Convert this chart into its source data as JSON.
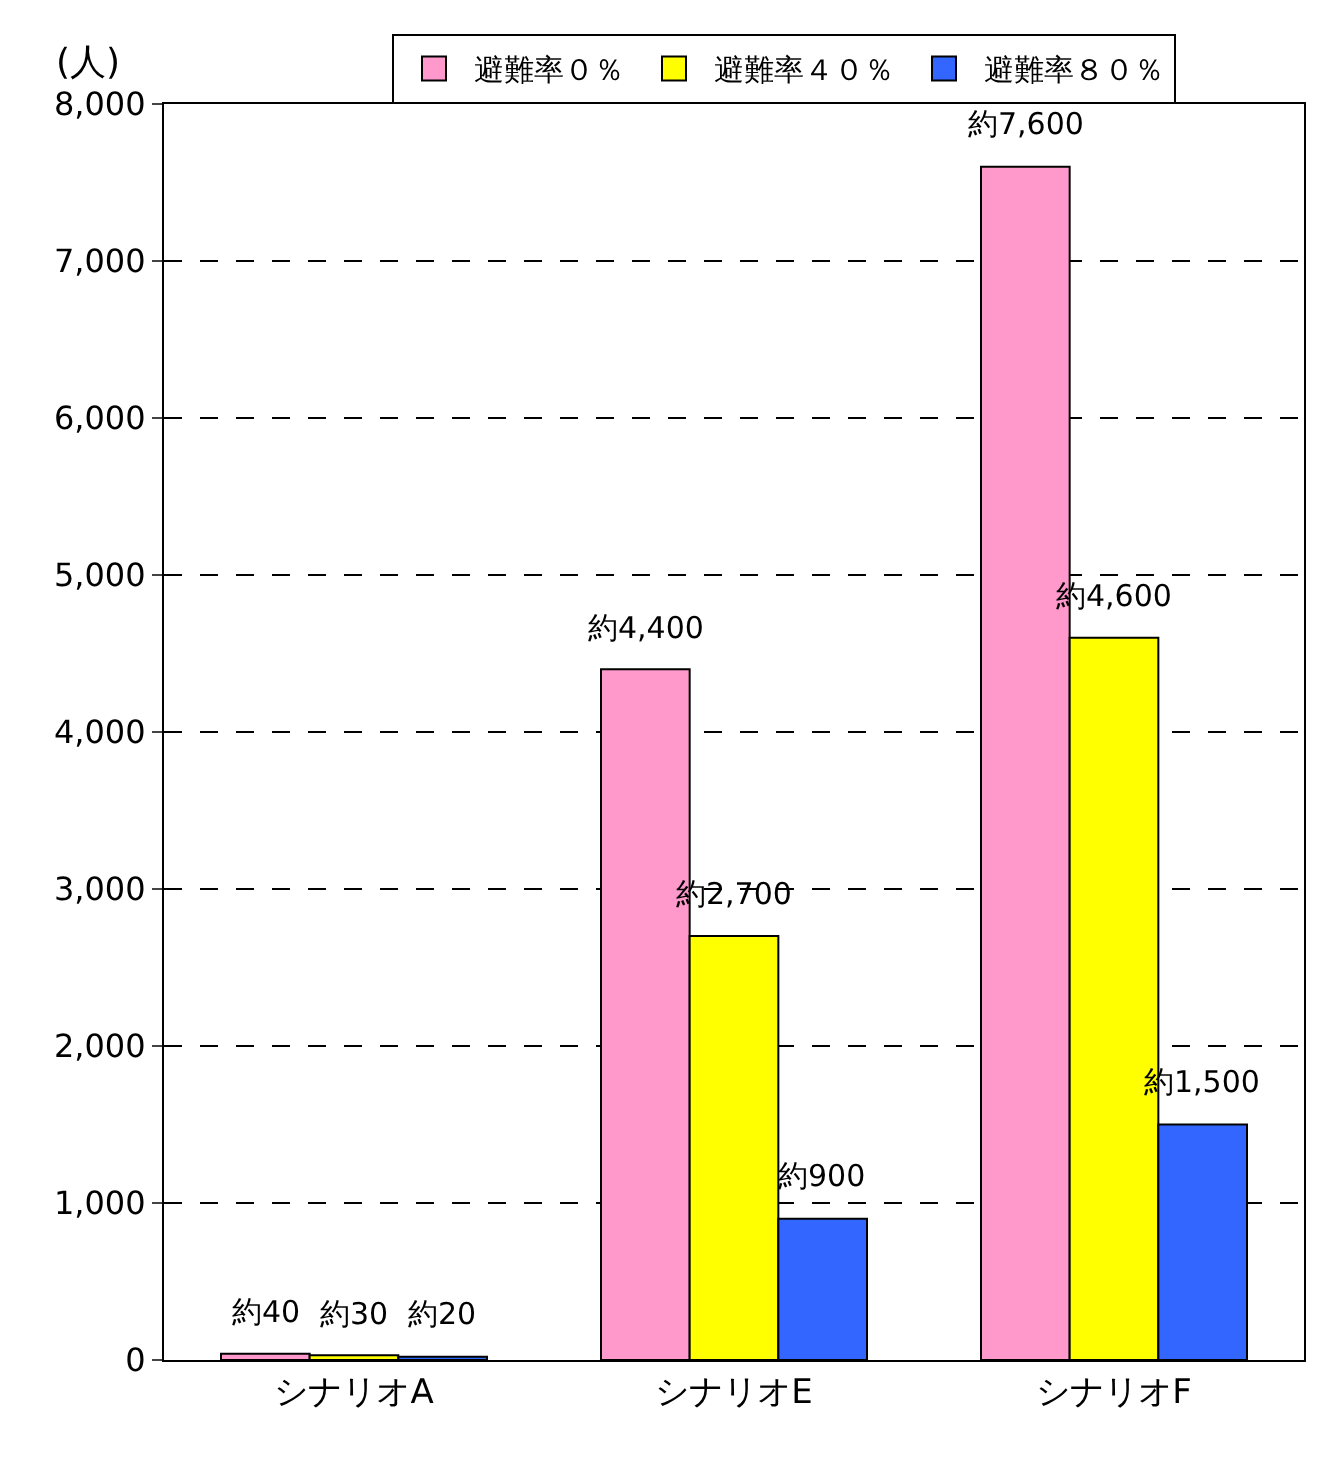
{
  "chart_data": {
    "type": "bar",
    "ylabel": "(人)",
    "categories": [
      "シナリオA",
      "シナリオE",
      "シナリオF"
    ],
    "series": [
      {
        "name": "避難率０％",
        "color": "#ff99cc",
        "values": [
          40,
          4400,
          7600
        ],
        "value_labels": [
          "約40",
          "約4,400",
          "約7,600"
        ]
      },
      {
        "name": "避難率４０％",
        "color": "#ffff00",
        "values": [
          30,
          2700,
          4600
        ],
        "value_labels": [
          "約30",
          "約2,700",
          "約4,600"
        ]
      },
      {
        "name": "避難率８０％",
        "color": "#3366ff",
        "values": [
          20,
          900,
          1500
        ],
        "value_labels": [
          "約20",
          "約900",
          "約1,500"
        ]
      }
    ],
    "ylim": [
      0,
      8000
    ],
    "yticks": [
      {
        "value": 0,
        "label": "0"
      },
      {
        "value": 1000,
        "label": "1,000"
      },
      {
        "value": 2000,
        "label": "2,000"
      },
      {
        "value": 3000,
        "label": "3,000"
      },
      {
        "value": 4000,
        "label": "4,000"
      },
      {
        "value": 5000,
        "label": "5,000"
      },
      {
        "value": 6000,
        "label": "6,000"
      },
      {
        "value": 7000,
        "label": "7,000"
      },
      {
        "value": 8000,
        "label": "8,000"
      }
    ],
    "grid": "y",
    "legend": "top left"
  }
}
